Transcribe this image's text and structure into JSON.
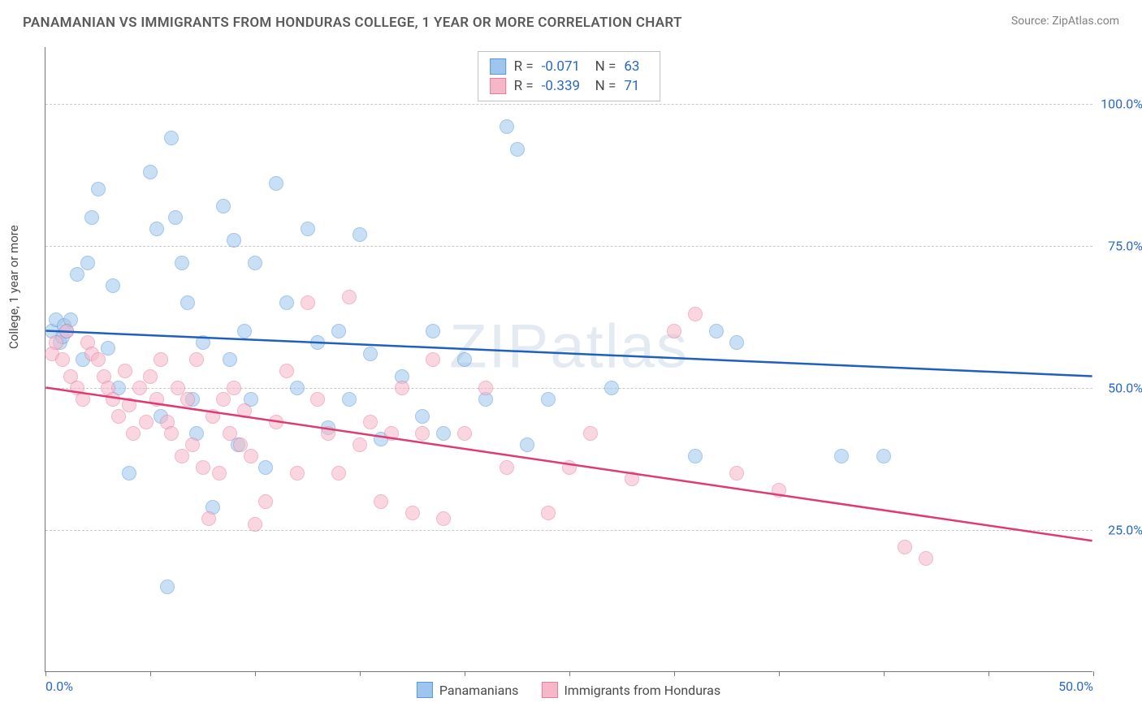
{
  "title": "PANAMANIAN VS IMMIGRANTS FROM HONDURAS COLLEGE, 1 YEAR OR MORE CORRELATION CHART",
  "source": "Source: ZipAtlas.com",
  "y_axis_label": "College, 1 year or more",
  "watermark": "ZIPatlas",
  "chart": {
    "type": "scatter-with-regression",
    "background_color": "#ffffff",
    "grid_color": "#c8c8c8",
    "axis_color": "#777777",
    "text_color": "#5a5a5a",
    "value_color": "#2968c8",
    "xlim": [
      0,
      50
    ],
    "ylim": [
      0,
      110
    ],
    "y_ticks": [
      {
        "value": 25,
        "label": "25.0%"
      },
      {
        "value": 50,
        "label": "50.0%"
      },
      {
        "value": 75,
        "label": "75.0%"
      },
      {
        "value": 100,
        "label": "100.0%"
      }
    ],
    "x_ticks_minor": [
      0,
      5,
      10,
      15,
      20,
      25,
      30,
      35,
      40,
      45,
      50
    ],
    "x_tick_labels": [
      {
        "value": 0,
        "label": "0.0%",
        "align": "left"
      },
      {
        "value": 50,
        "label": "50.0%",
        "align": "right"
      }
    ],
    "marker_radius": 9,
    "marker_opacity": 0.55,
    "series": [
      {
        "id": "panamanians",
        "label": "Panamanians",
        "fill": "#9ec5ed",
        "stroke": "#5a99d6",
        "line_color": "#1e5fc0",
        "line_width": 2.5,
        "R": "-0.071",
        "N": "63",
        "regression": {
          "x1": 0,
          "y1": 60,
          "x2": 50,
          "y2": 52
        },
        "points": [
          [
            0.3,
            60
          ],
          [
            0.5,
            62
          ],
          [
            0.7,
            58
          ],
          [
            0.8,
            59
          ],
          [
            0.9,
            61
          ],
          [
            1.0,
            60
          ],
          [
            1.2,
            62
          ],
          [
            1.5,
            70
          ],
          [
            1.8,
            55
          ],
          [
            2.0,
            72
          ],
          [
            2.2,
            80
          ],
          [
            2.5,
            85
          ],
          [
            3.0,
            57
          ],
          [
            3.2,
            68
          ],
          [
            3.5,
            50
          ],
          [
            4.0,
            35
          ],
          [
            5.0,
            88
          ],
          [
            5.3,
            78
          ],
          [
            5.5,
            45
          ],
          [
            5.8,
            15
          ],
          [
            6.0,
            94
          ],
          [
            6.2,
            80
          ],
          [
            6.5,
            72
          ],
          [
            6.8,
            65
          ],
          [
            7.0,
            48
          ],
          [
            7.2,
            42
          ],
          [
            7.5,
            58
          ],
          [
            8.0,
            29
          ],
          [
            8.5,
            82
          ],
          [
            8.8,
            55
          ],
          [
            9.0,
            76
          ],
          [
            9.2,
            40
          ],
          [
            9.5,
            60
          ],
          [
            9.8,
            48
          ],
          [
            10.0,
            72
          ],
          [
            10.5,
            36
          ],
          [
            11.0,
            86
          ],
          [
            11.5,
            65
          ],
          [
            12.0,
            50
          ],
          [
            12.5,
            78
          ],
          [
            13.0,
            58
          ],
          [
            13.5,
            43
          ],
          [
            14.0,
            60
          ],
          [
            14.5,
            48
          ],
          [
            15.0,
            77
          ],
          [
            15.5,
            56
          ],
          [
            16.0,
            41
          ],
          [
            17.0,
            52
          ],
          [
            18.0,
            45
          ],
          [
            18.5,
            60
          ],
          [
            19.0,
            42
          ],
          [
            20.0,
            55
          ],
          [
            21.0,
            48
          ],
          [
            22.0,
            96
          ],
          [
            22.5,
            92
          ],
          [
            23.0,
            40
          ],
          [
            24.0,
            48
          ],
          [
            27.0,
            50
          ],
          [
            31.0,
            38
          ],
          [
            32.0,
            60
          ],
          [
            33.0,
            58
          ],
          [
            38.0,
            38
          ],
          [
            40.0,
            38
          ]
        ]
      },
      {
        "id": "honduras",
        "label": "Immigrants from Honduras",
        "fill": "#f6b8c8",
        "stroke": "#e67ca0",
        "line_color": "#e03a72",
        "line_width": 2.5,
        "R": "-0.339",
        "N": "71",
        "regression": {
          "x1": 0,
          "y1": 50,
          "x2": 50,
          "y2": 23
        },
        "points": [
          [
            0.3,
            56
          ],
          [
            0.5,
            58
          ],
          [
            0.8,
            55
          ],
          [
            1.0,
            60
          ],
          [
            1.2,
            52
          ],
          [
            1.5,
            50
          ],
          [
            1.8,
            48
          ],
          [
            2.0,
            58
          ],
          [
            2.2,
            56
          ],
          [
            2.5,
            55
          ],
          [
            2.8,
            52
          ],
          [
            3.0,
            50
          ],
          [
            3.2,
            48
          ],
          [
            3.5,
            45
          ],
          [
            3.8,
            53
          ],
          [
            4.0,
            47
          ],
          [
            4.2,
            42
          ],
          [
            4.5,
            50
          ],
          [
            4.8,
            44
          ],
          [
            5.0,
            52
          ],
          [
            5.3,
            48
          ],
          [
            5.5,
            55
          ],
          [
            5.8,
            44
          ],
          [
            6.0,
            42
          ],
          [
            6.3,
            50
          ],
          [
            6.5,
            38
          ],
          [
            6.8,
            48
          ],
          [
            7.0,
            40
          ],
          [
            7.2,
            55
          ],
          [
            7.5,
            36
          ],
          [
            7.8,
            27
          ],
          [
            8.0,
            45
          ],
          [
            8.3,
            35
          ],
          [
            8.5,
            48
          ],
          [
            8.8,
            42
          ],
          [
            9.0,
            50
          ],
          [
            9.3,
            40
          ],
          [
            9.5,
            46
          ],
          [
            9.8,
            38
          ],
          [
            10.0,
            26
          ],
          [
            10.5,
            30
          ],
          [
            11.0,
            44
          ],
          [
            11.5,
            53
          ],
          [
            12.0,
            35
          ],
          [
            12.5,
            65
          ],
          [
            13.0,
            48
          ],
          [
            13.5,
            42
          ],
          [
            14.0,
            35
          ],
          [
            14.5,
            66
          ],
          [
            15.0,
            40
          ],
          [
            15.5,
            44
          ],
          [
            16.0,
            30
          ],
          [
            16.5,
            42
          ],
          [
            17.0,
            50
          ],
          [
            17.5,
            28
          ],
          [
            18.0,
            42
          ],
          [
            18.5,
            55
          ],
          [
            19.0,
            27
          ],
          [
            20.0,
            42
          ],
          [
            21.0,
            50
          ],
          [
            22.0,
            36
          ],
          [
            24.0,
            28
          ],
          [
            25.0,
            36
          ],
          [
            26.0,
            42
          ],
          [
            28.0,
            34
          ],
          [
            30.0,
            60
          ],
          [
            31.0,
            63
          ],
          [
            33.0,
            35
          ],
          [
            35.0,
            32
          ],
          [
            41.0,
            22
          ],
          [
            42.0,
            20
          ]
        ]
      }
    ]
  }
}
